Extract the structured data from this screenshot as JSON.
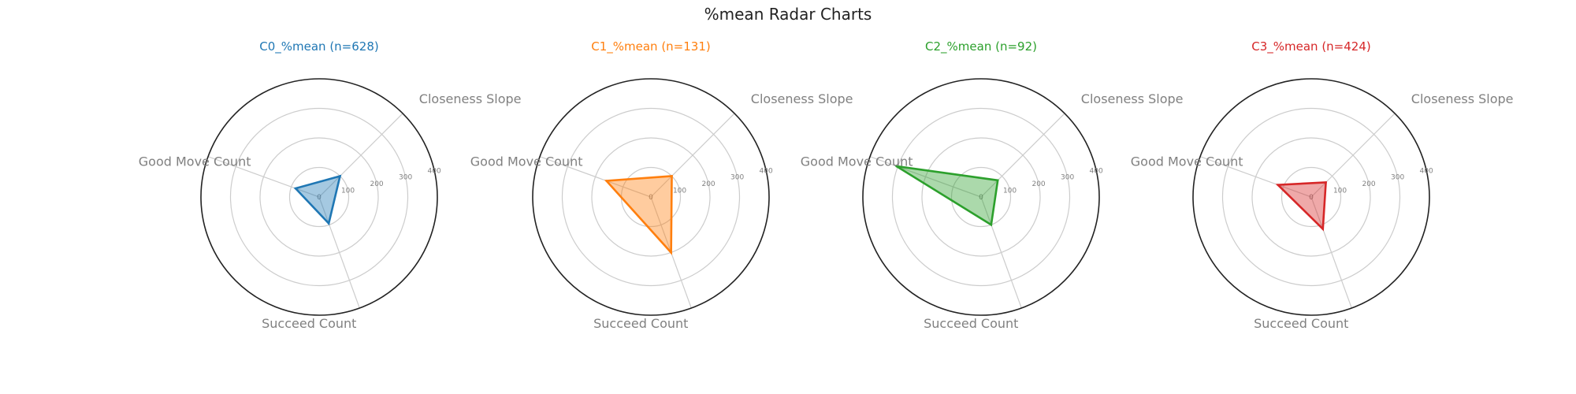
{
  "figure": {
    "title": "%mean Radar Charts"
  },
  "chart_data": [
    {
      "type": "radar",
      "title": "C0_%mean (n=628)",
      "color": "#1f77b4",
      "axes": [
        "Closeness Slope",
        "Good Move Count",
        "Succeed Count"
      ],
      "values": [
        100,
        85,
        95
      ],
      "rlim": [
        0,
        400
      ],
      "rticks": [
        0,
        100,
        200,
        300,
        400
      ],
      "grid": true
    },
    {
      "type": "radar",
      "title": "C1_%mean (n=131)",
      "color": "#ff7f0e",
      "axes": [
        "Closeness Slope",
        "Good Move Count",
        "Succeed Count"
      ],
      "values": [
        100,
        160,
        200
      ],
      "rlim": [
        0,
        400
      ],
      "rticks": [
        0,
        100,
        200,
        300,
        400
      ],
      "grid": true
    },
    {
      "type": "radar",
      "title": "C2_%mean (n=92)",
      "color": "#2ca02c",
      "axes": [
        "Closeness Slope",
        "Good Move Count",
        "Succeed Count"
      ],
      "values": [
        80,
        305,
        100
      ],
      "rlim": [
        0,
        400
      ],
      "rticks": [
        0,
        100,
        200,
        300,
        400
      ],
      "grid": true
    },
    {
      "type": "radar",
      "title": "C3_%mean (n=424)",
      "color": "#d62728",
      "axes": [
        "Closeness Slope",
        "Good Move Count",
        "Succeed Count"
      ],
      "values": [
        70,
        120,
        115
      ],
      "rlim": [
        0,
        400
      ],
      "rticks": [
        0,
        100,
        200,
        300,
        400
      ],
      "grid": true
    }
  ]
}
